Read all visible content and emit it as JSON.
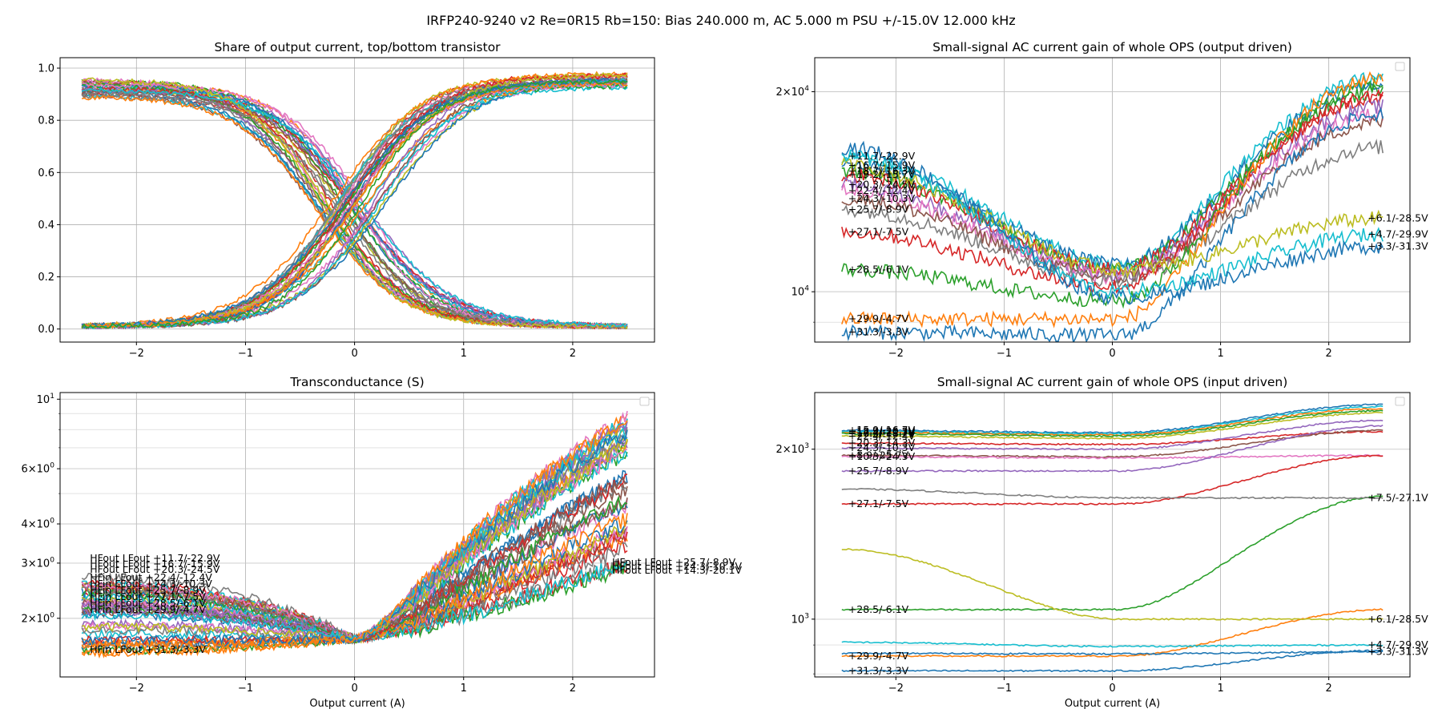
{
  "figure": {
    "suptitle": "IRFP240-9240 v2 Re=0R15 Rb=150: Bias 240.000 m, AC 5.000 m PSU +/-15.0V 12.000 kHz"
  },
  "colors": [
    "#1f77b4",
    "#ff7f0e",
    "#2ca02c",
    "#d62728",
    "#9467bd",
    "#8c564b",
    "#e377c2",
    "#7f7f7f",
    "#bcbd22",
    "#17becf"
  ],
  "chart_data": [
    {
      "id": "share",
      "type": "line",
      "title": "Share of output current, top/bottom transistor",
      "xlabel": "",
      "xlim": [
        -2.7,
        2.75
      ],
      "ylim": [
        -0.05,
        1.04
      ],
      "yscale": "linear",
      "grid": true,
      "x_ticks": [
        -2,
        -1,
        0,
        1,
        2
      ],
      "x_tick_labels": [
        "−2",
        "−1",
        "0",
        "1",
        "2"
      ],
      "y_ticks": [
        0.0,
        0.2,
        0.4,
        0.6,
        0.8,
        1.0
      ],
      "y_tick_labels": [
        "0.0",
        "0.2",
        "0.4",
        "0.6",
        "0.8",
        "1.0"
      ],
      "x_range": [
        -2.5,
        2.5
      ],
      "description_series": {
        "falling_curves": {
          "start": 0.93,
          "end": 0.01,
          "center_range": [
            -0.35,
            0.15
          ],
          "count": 30
        },
        "rising_curves": {
          "start": 0.01,
          "end": 0.95,
          "center_range": [
            -0.2,
            0.3
          ],
          "count": 30
        }
      }
    },
    {
      "id": "gain_out",
      "type": "line",
      "title": "Small-signal AC current gain of whole OPS (output driven)",
      "xlabel": "",
      "xlim": [
        -2.75,
        2.75
      ],
      "ylim": [
        8400,
        22500
      ],
      "yscale": "log",
      "grid": true,
      "x_ticks": [
        -2,
        -1,
        0,
        1,
        2
      ],
      "x_tick_labels": [
        "−2",
        "−1",
        "0",
        "1",
        "2"
      ],
      "y_ticks": [
        10000,
        20000
      ],
      "y_tick_labels": [
        "10^4",
        "2×10^4"
      ],
      "legend": "empty box top-right",
      "series": [
        {
          "name": "+11.7/-22.9V",
          "left": 16000,
          "min": 11000,
          "right": 21000,
          "color": 9,
          "label_left": true
        },
        {
          "name": "+16.7/-15.9V",
          "left": 15500,
          "min": 11000,
          "right": 20500,
          "color": 0,
          "label_left": true
        },
        {
          "name": "+18.7/-16.3V",
          "left": 15200,
          "min": 10800,
          "right": 20000,
          "color": 2,
          "label_left": true
        },
        {
          "name": "+19.2/-15.7V",
          "left": 15000,
          "min": 10800,
          "right": 19500,
          "color": 3,
          "label_left": true
        },
        {
          "name": "+20.3/-24.5V",
          "left": 14500,
          "min": 10600,
          "right": 19000,
          "color": 4,
          "label_left": true
        },
        {
          "name": "+22.4/-12.4V",
          "left": 14200,
          "min": 10500,
          "right": 18500,
          "color": 6,
          "label_left": true
        },
        {
          "name": "+24.3/-10.3V",
          "left": 13800,
          "min": 10500,
          "right": 18000,
          "color": 5,
          "label_left": true
        },
        {
          "name": "+25.7/-8.9V",
          "left": 13300,
          "min": 10400,
          "right": 16500,
          "color": 7,
          "label_left": true
        },
        {
          "name": "+27.1/-7.5V",
          "left": 12300,
          "min": 10200,
          "right": 19800,
          "color": 3,
          "label_left": true
        },
        {
          "name": "+28.5/-6.1V",
          "left": 10800,
          "min": 9700,
          "right": 20500,
          "color": 2,
          "label_left": true
        },
        {
          "name": "+29.9/-4.7V",
          "left": 9100,
          "min": 9100,
          "right": 21000,
          "color": 1,
          "label_left": true
        },
        {
          "name": "+31.3/-3.3V",
          "left": 8700,
          "min": 8600,
          "right": 18500,
          "color": 0,
          "label_left": true
        },
        {
          "name": "+6.1/-28.5V",
          "left": 15500,
          "min": 10800,
          "right": 12900,
          "color": 8,
          "label_left": false
        },
        {
          "name": "+4.7/-29.9V",
          "left": 16000,
          "min": 10000,
          "right": 12200,
          "color": 9,
          "label_left": false
        },
        {
          "name": "+3.3/-31.3V",
          "left": 16500,
          "min": 9800,
          "right": 11700,
          "color": 0,
          "label_left": false
        }
      ]
    },
    {
      "id": "gm",
      "type": "line",
      "title": "Transconductance (S)",
      "xlabel": "Output current (A)",
      "xlim": [
        -2.7,
        2.75
      ],
      "ylim": [
        1.3,
        10.5
      ],
      "yscale": "log",
      "grid": true,
      "x_ticks": [
        -2,
        -1,
        0,
        1,
        2
      ],
      "x_tick_labels": [
        "−2",
        "−1",
        "0",
        "1",
        "2"
      ],
      "y_ticks": [
        2,
        3,
        4,
        6,
        10
      ],
      "y_tick_labels": [
        "2×10^0",
        "3×10^0",
        "4×10^0",
        "6×10^0",
        "10^1"
      ],
      "legend": "empty box top-right",
      "left_labels": [
        "HFout  LFout +11.7/-22.9V",
        "HFout  LFout +16.7/-15.9V",
        "HFout  LFout +20.3/-24.5V",
        "HFin  LFout +22.4/-12.4V",
        "HFin  LFout +24.3/-10.3V",
        "HFin  LFout +25.7/-8.9V",
        "HFin  LFout +27.1/-7.5V",
        "HFin  LFout +28.5/-6.1V",
        "HFin  LFout +29.9/-4.7V",
        "HFin  LFout +31.3/-3.3V"
      ],
      "right_labels": [
        "HFout  LFout +25.7/-8.9V",
        "HFout  LFout +24.3/-10.3V",
        "HFout  LFout +14.3/-20.1V"
      ]
    },
    {
      "id": "gain_in",
      "type": "line",
      "title": "Small-signal AC current gain of whole OPS (input driven)",
      "xlabel": "Output current (A)",
      "xlim": [
        -2.75,
        2.75
      ],
      "ylim": [
        790,
        2520
      ],
      "yscale": "log",
      "grid": true,
      "x_ticks": [
        -2,
        -1,
        0,
        1,
        2
      ],
      "x_tick_labels": [
        "−2",
        "−1",
        "0",
        "1",
        "2"
      ],
      "y_ticks": [
        1000,
        2000
      ],
      "y_tick_labels": [
        "10^3",
        "2×10^3"
      ],
      "legend": "empty box top-right",
      "series": [
        {
          "name": "+15.9/-16.7V",
          "left": 2160,
          "min": 2140,
          "right": 2400,
          "color": 0,
          "label_left": true
        },
        {
          "name": "+18.9/-20.3V",
          "left": 2150,
          "min": 2130,
          "right": 2380,
          "color": 9,
          "label_left": true
        },
        {
          "name": "+17.4/-21.7V",
          "left": 2140,
          "min": 2120,
          "right": 2360,
          "color": 1,
          "label_left": true
        },
        {
          "name": "+16.3/-18.7V",
          "left": 2130,
          "min": 2110,
          "right": 2340,
          "color": 2,
          "label_left": true
        },
        {
          "name": "+22.4/-12.4V",
          "left": 2110,
          "min": 2090,
          "right": 2320,
          "color": 8,
          "label_left": true
        },
        {
          "name": "+20.3/-14.3V",
          "left": 2050,
          "min": 2040,
          "right": 2150,
          "color": 3,
          "label_left": true
        },
        {
          "name": "+24.3/-10.3V",
          "left": 2010,
          "min": 2000,
          "right": 2250,
          "color": 4,
          "label_left": true
        },
        {
          "name": "+8.9/-25.7V",
          "left": 1950,
          "min": 1940,
          "right": 2160,
          "color": 5,
          "label_left": true
        },
        {
          "name": "+10.3/-24.3V",
          "left": 1940,
          "min": 1930,
          "right": 1950,
          "color": 6,
          "label_left": true
        },
        {
          "name": "+25.7/-8.9V",
          "left": 1830,
          "min": 1830,
          "right": 2200,
          "color": 4,
          "label_left": true
        },
        {
          "name": "+27.1/-7.5V",
          "left": 1600,
          "min": 1600,
          "right": 1950,
          "color": 3,
          "label_left": true
        },
        {
          "name": "+28.5/-6.1V",
          "left": 1040,
          "min": 1040,
          "right": 1650,
          "color": 2,
          "label_left": true
        },
        {
          "name": "+29.9/-4.7V",
          "left": 860,
          "min": 860,
          "right": 1040,
          "color": 1,
          "label_left": true
        },
        {
          "name": "+31.3/-3.3V",
          "left": 810,
          "min": 810,
          "right": 880,
          "color": 0,
          "label_left": true
        },
        {
          "name": "+7.5/-27.1V",
          "left": 1700,
          "min": 1640,
          "right": 1640,
          "color": 7,
          "label_left": false
        },
        {
          "name": "+6.1/-28.5V",
          "left": 1330,
          "min": 1000,
          "right": 1000,
          "color": 8,
          "label_left": false
        },
        {
          "name": "+4.7/-29.9V",
          "left": 910,
          "min": 895,
          "right": 900,
          "color": 9,
          "label_left": false
        },
        {
          "name": "+3.3/-31.3V",
          "left": 870,
          "min": 868,
          "right": 875,
          "color": 0,
          "label_left": false
        }
      ]
    }
  ]
}
